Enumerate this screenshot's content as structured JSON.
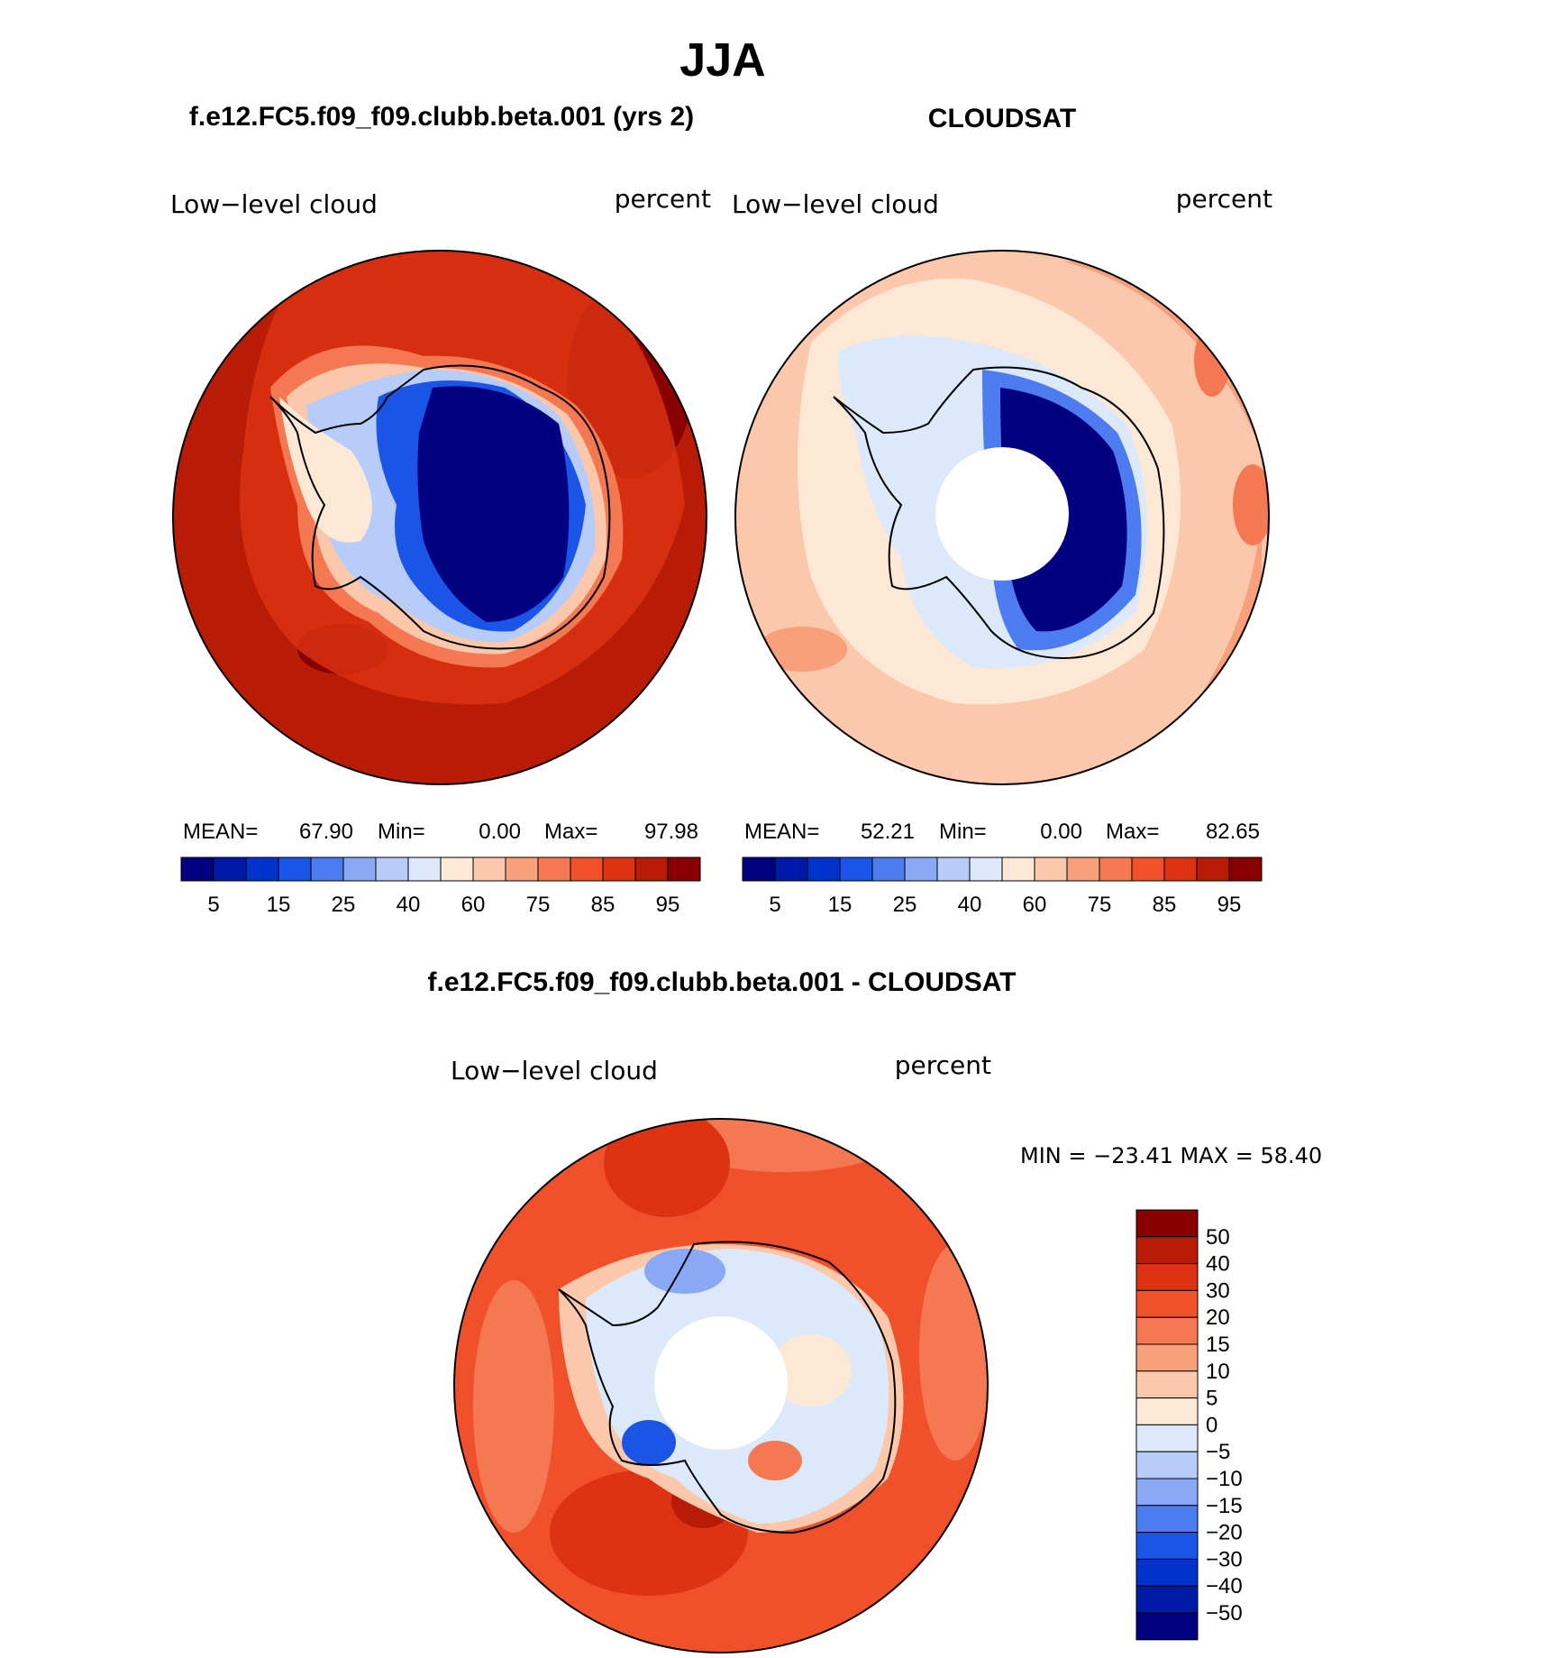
{
  "title": "JJA",
  "colors": {
    "scale": [
      "#000080",
      "#001aa8",
      "#0033cc",
      "#1a55e8",
      "#4d7cf0",
      "#8aa8f5",
      "#b7ccf8",
      "#dce9fb",
      "#fde8d6",
      "#fbc8ac",
      "#f8a07c",
      "#f47852",
      "#f0502a",
      "#dd3312",
      "#b81c06",
      "#880000"
    ],
    "diff_scale": [
      "#000080",
      "#001aa8",
      "#0033cc",
      "#1a55e8",
      "#4d7cf0",
      "#8aa8f5",
      "#b7ccf8",
      "#dce9fb",
      "#fde8d6",
      "#fbc8ac",
      "#f8a07c",
      "#f47852",
      "#f0502a",
      "#dd3312",
      "#b81c06",
      "#880000"
    ],
    "coast": "#000000"
  },
  "panels": [
    {
      "heading": "f.e12.FC5.f09_f09.clubb.beta.001 (yrs 2)",
      "variable": "Low−level cloud",
      "units": "percent",
      "stats": {
        "mean_label": "MEAN=",
        "mean": "67.90",
        "min_label": "Min=",
        "min": "0.00",
        "max_label": "Max=",
        "max": "97.98"
      },
      "colorbar_ticks": [
        "5",
        "15",
        "25",
        "40",
        "60",
        "75",
        "85",
        "95"
      ]
    },
    {
      "heading": "CLOUDSAT",
      "variable": "Low−level cloud",
      "units": "percent",
      "stats": {
        "mean_label": "MEAN=",
        "mean": "52.21",
        "min_label": "Min=",
        "min": "0.00",
        "max_label": "Max=",
        "max": "82.65"
      },
      "colorbar_ticks": [
        "5",
        "15",
        "25",
        "40",
        "60",
        "75",
        "85",
        "95"
      ]
    },
    {
      "heading": "f.e12.FC5.f09_f09.clubb.beta.001 - CLOUDSAT",
      "variable": "Low−level cloud",
      "units": "percent",
      "stats_text": "MIN = −23.41  MAX =   58.40",
      "colorbar_ticks": [
        "50",
        "40",
        "30",
        "20",
        "15",
        "10",
        "5",
        "0",
        "−5",
        "−10",
        "−15",
        "−20",
        "−30",
        "−40",
        "−50"
      ]
    }
  ],
  "chart_data": [
    {
      "type": "heatmap",
      "title": "f.e12.FC5.f09_f09.clubb.beta.001 (yrs 2)",
      "subtitle": "Low−level cloud",
      "units": "percent",
      "projection": "south-polar stereographic",
      "mean": 67.9,
      "min": 0.0,
      "max": 97.98,
      "levels": [
        5,
        10,
        15,
        20,
        25,
        30,
        40,
        50,
        60,
        70,
        75,
        80,
        85,
        90,
        95
      ],
      "regions": {
        "ocean": 85,
        "southern_ocean_peak": 95,
        "antarctic_coast": 60,
        "antarctic_interior": 0,
        "west_antarctica": 40
      }
    },
    {
      "type": "heatmap",
      "title": "CLOUDSAT",
      "subtitle": "Low−level cloud",
      "units": "percent",
      "projection": "south-polar stereographic",
      "mean": 52.21,
      "min": 0.0,
      "max": 82.65,
      "levels": [
        5,
        10,
        15,
        20,
        25,
        30,
        40,
        50,
        60,
        70,
        75,
        80,
        85,
        90,
        95
      ],
      "regions": {
        "ocean": 65,
        "southern_ocean_bands": 75,
        "antarctic_coast": 50,
        "antarctic_interior": 0,
        "pole": "missing"
      }
    },
    {
      "type": "heatmap",
      "title": "f.e12.FC5.f09_f09.clubb.beta.001 - CLOUDSAT",
      "subtitle": "Low−level cloud",
      "units": "percent",
      "projection": "south-polar stereographic",
      "min": -23.41,
      "max": 58.4,
      "levels": [
        -50,
        -40,
        -30,
        -20,
        -15,
        -10,
        -5,
        0,
        5,
        10,
        15,
        20,
        30,
        40,
        50
      ],
      "regions": {
        "ocean": 20,
        "coastal_max": 50,
        "antarctica": -5,
        "pole": "missing"
      }
    }
  ]
}
